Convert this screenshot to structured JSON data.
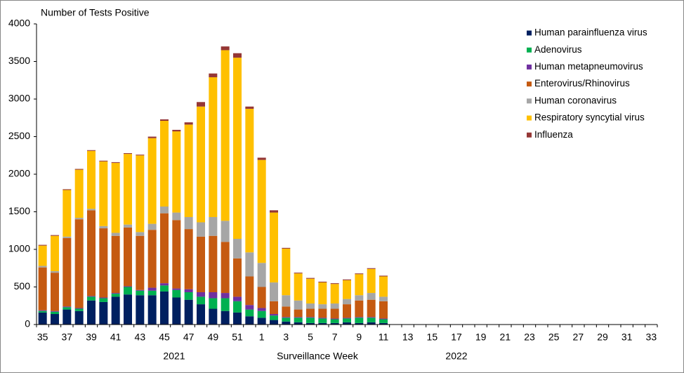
{
  "chart_data": {
    "type": "stacked_bar",
    "title": "Number of Tests Positive",
    "x_label": "Surveillance Week",
    "annotations": [
      "2021",
      "2022"
    ],
    "categories": [
      "35",
      null,
      "37",
      null,
      "39",
      null,
      "41",
      null,
      "43",
      null,
      "45",
      null,
      "47",
      null,
      "49",
      null,
      "51",
      null,
      "1",
      null,
      "3",
      null,
      "5",
      null,
      "7",
      null,
      "9",
      null,
      "11",
      null,
      "13",
      null,
      "15",
      null,
      "17",
      null,
      "19",
      null,
      "21",
      null,
      "23",
      null,
      "25",
      null,
      "27",
      null,
      "29",
      null,
      "31",
      null,
      "33"
    ],
    "ylim": [
      0,
      4000
    ],
    "yticks": [
      0,
      500,
      1000,
      1500,
      2000,
      2500,
      3000,
      3500,
      4000
    ],
    "legend": "top-right",
    "series": [
      {
        "name": "Human parainfluenza virus",
        "color": "#002060",
        "values": [
          160,
          140,
          200,
          180,
          320,
          300,
          370,
          400,
          390,
          390,
          440,
          360,
          330,
          270,
          210,
          180,
          160,
          110,
          90,
          60,
          40,
          30,
          20,
          20,
          20,
          30,
          20,
          30,
          20,
          null,
          null,
          null,
          null,
          null,
          null,
          null,
          null,
          null,
          null,
          null,
          null,
          null,
          null,
          null,
          null,
          null,
          null,
          null,
          null,
          null,
          null
        ]
      },
      {
        "name": "Adenovirus",
        "color": "#00b050",
        "values": [
          20,
          30,
          30,
          30,
          50,
          50,
          40,
          100,
          60,
          60,
          80,
          100,
          100,
          100,
          140,
          170,
          150,
          90,
          90,
          60,
          50,
          60,
          70,
          60,
          50,
          50,
          70,
          60,
          50,
          null,
          null,
          null,
          null,
          null,
          null,
          null,
          null,
          null,
          null,
          null,
          null,
          null,
          null,
          null,
          null,
          null,
          null,
          null,
          null,
          null,
          null
        ]
      },
      {
        "name": "Human metapneumovirus",
        "color": "#7030a0",
        "values": [
          10,
          10,
          10,
          10,
          10,
          10,
          10,
          10,
          10,
          40,
          30,
          20,
          40,
          60,
          80,
          70,
          60,
          60,
          40,
          20,
          10,
          10,
          10,
          10,
          10,
          10,
          10,
          10,
          10,
          null,
          null,
          null,
          null,
          null,
          null,
          null,
          null,
          null,
          null,
          null,
          null,
          null,
          null,
          null,
          null,
          null,
          null,
          null,
          null,
          null,
          null
        ]
      },
      {
        "name": "Enterovirus/Rhinovirus",
        "color": "#c55a11",
        "values": [
          570,
          510,
          910,
          1180,
          1140,
          920,
          760,
          780,
          720,
          770,
          930,
          910,
          800,
          740,
          750,
          680,
          510,
          380,
          280,
          170,
          140,
          100,
          110,
          120,
          130,
          180,
          220,
          230,
          230,
          null,
          null,
          null,
          null,
          null,
          null,
          null,
          null,
          null,
          null,
          null,
          null,
          null,
          null,
          null,
          null,
          null,
          null,
          null,
          null,
          null,
          null
        ]
      },
      {
        "name": "Human coronavirus",
        "color": "#a6a6a6",
        "values": [
          20,
          20,
          20,
          20,
          20,
          30,
          40,
          40,
          50,
          80,
          90,
          100,
          160,
          190,
          250,
          280,
          260,
          320,
          320,
          250,
          150,
          120,
          70,
          60,
          70,
          70,
          70,
          90,
          60,
          null,
          null,
          null,
          null,
          null,
          null,
          null,
          null,
          null,
          null,
          null,
          null,
          null,
          null,
          null,
          null,
          null,
          null,
          null,
          null,
          null,
          null
        ]
      },
      {
        "name": "Respiratory syncytial virus",
        "color": "#ffc000",
        "values": [
          270,
          470,
          620,
          640,
          770,
          860,
          930,
          940,
          1020,
          1140,
          1140,
          1080,
          1230,
          1540,
          1860,
          2270,
          2410,
          1910,
          1370,
          930,
          620,
          360,
          330,
          290,
          260,
          250,
          280,
          320,
          270,
          null,
          null,
          null,
          null,
          null,
          null,
          null,
          null,
          null,
          null,
          null,
          null,
          null,
          null,
          null,
          null,
          null,
          null,
          null,
          null,
          null,
          null
        ]
      },
      {
        "name": "Influenza",
        "color": "#953735",
        "values": [
          10,
          10,
          10,
          10,
          10,
          10,
          10,
          10,
          10,
          20,
          20,
          20,
          30,
          60,
          50,
          50,
          60,
          30,
          30,
          30,
          10,
          10,
          10,
          10,
          10,
          10,
          10,
          10,
          10,
          null,
          null,
          null,
          null,
          null,
          null,
          null,
          null,
          null,
          null,
          null,
          null,
          null,
          null,
          null,
          null,
          null,
          null,
          null,
          null,
          null,
          null
        ]
      }
    ]
  }
}
